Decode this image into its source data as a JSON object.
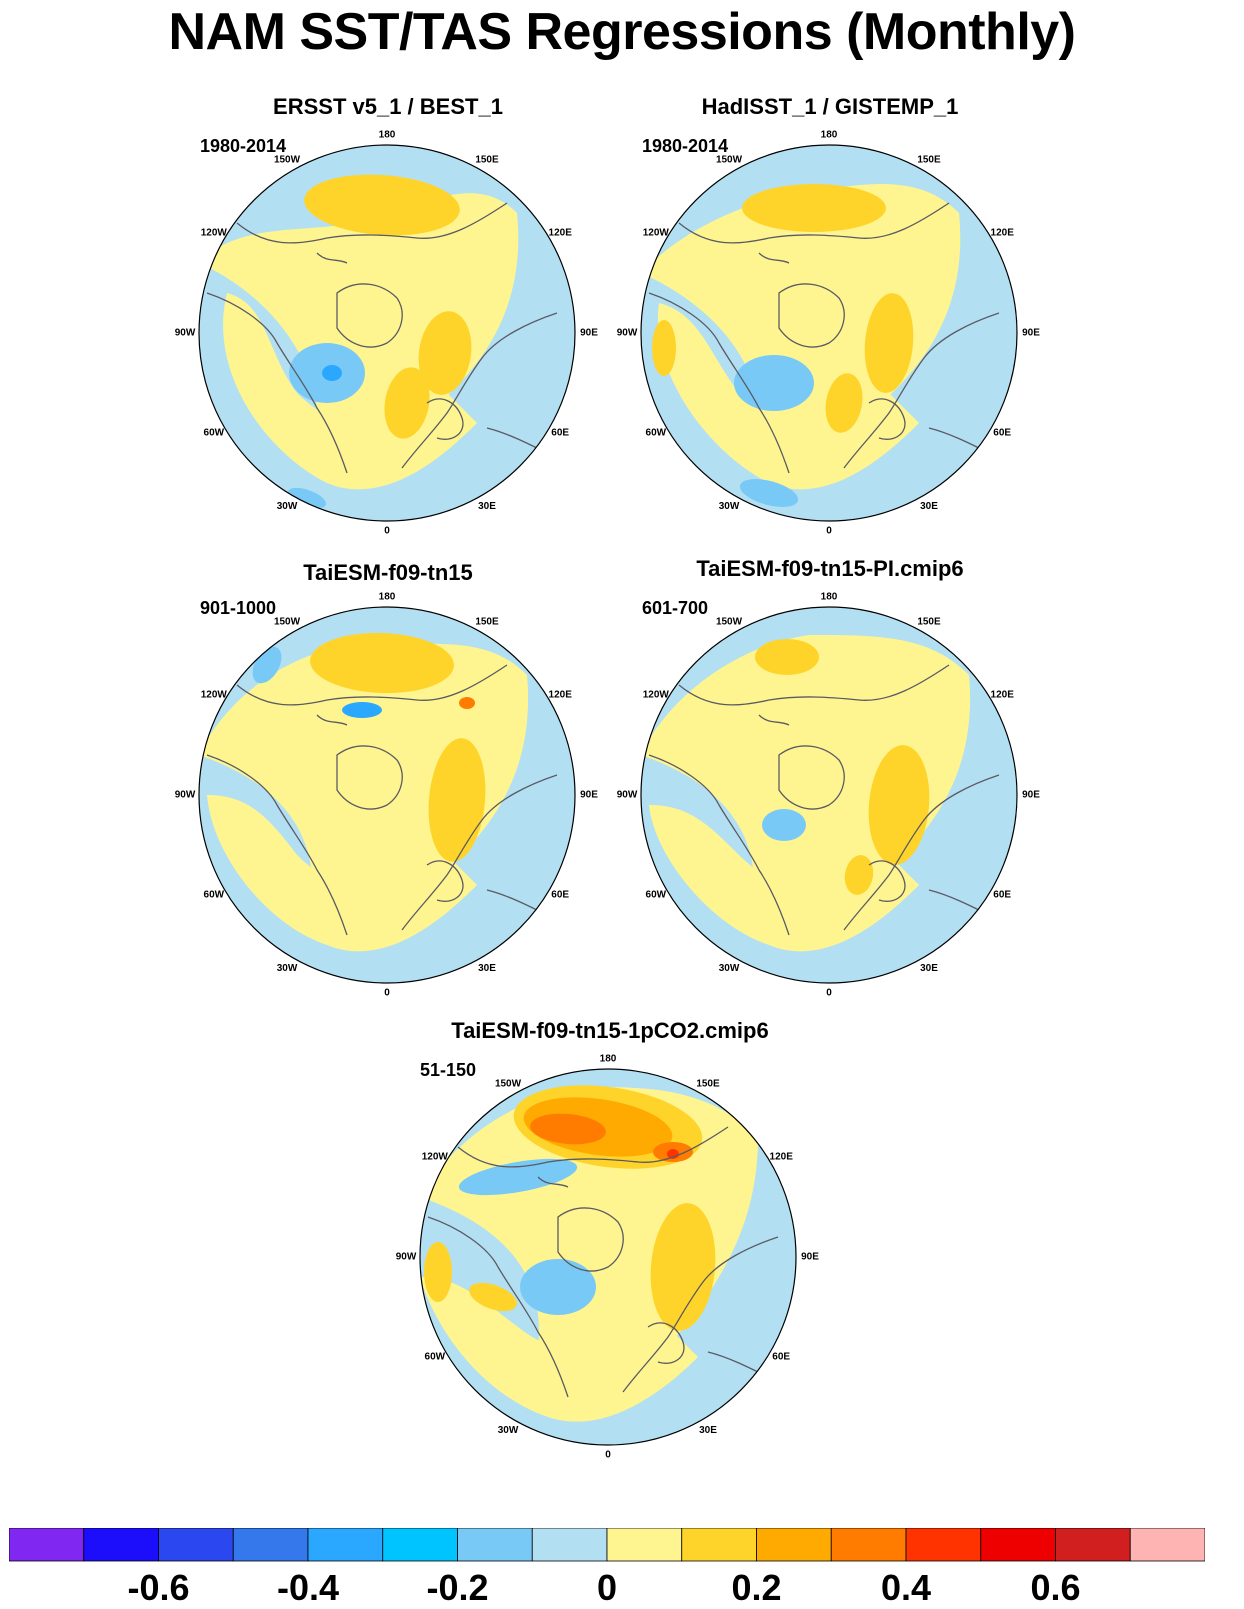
{
  "title": "NAM SST/TAS Regressions (Monthly)",
  "palette": {
    "ocean_neutral": "#b3dff2",
    "land_neutral": "#fef590",
    "pos1": "#ffd42a",
    "pos2": "#ffaa00",
    "pos3": "#ff7c00",
    "pos4": "#ff3300",
    "neg1": "#79c9f6",
    "neg2": "#2aa7ff",
    "coast": "#5a5a64"
  },
  "panels": [
    {
      "title": "ERSST v5_1 / BEST_1",
      "period": "1980-2014"
    },
    {
      "title": "HadISST_1 / GISTEMP_1",
      "period": "1980-2014"
    },
    {
      "title": "TaiESM-f09-tn15",
      "period": "901-1000"
    },
    {
      "title": "TaiESM-f09-tn15-PI.cmip6",
      "period": "601-700"
    },
    {
      "title": "TaiESM-f09-tn15-1pCO2.cmip6",
      "period": "51-150"
    }
  ],
  "longitude_labels": [
    "180",
    "150E",
    "120E",
    "90E",
    "60E",
    "30E",
    "0",
    "30W",
    "60W",
    "90W",
    "120W",
    "150W"
  ],
  "colorbar": {
    "colors": [
      "#8127f2",
      "#1c0dfa",
      "#2b47f0",
      "#3478ec",
      "#2aa7ff",
      "#00c4ff",
      "#79c9f6",
      "#b3dff2",
      "#fef590",
      "#ffd42a",
      "#ffaa00",
      "#ff7c00",
      "#ff3300",
      "#ee0000",
      "#d11f1f",
      "#ffb4b4"
    ],
    "tick_labels": [
      "-0.6",
      "-0.4",
      "-0.2",
      "0",
      "0.2",
      "0.4",
      "0.6"
    ]
  }
}
